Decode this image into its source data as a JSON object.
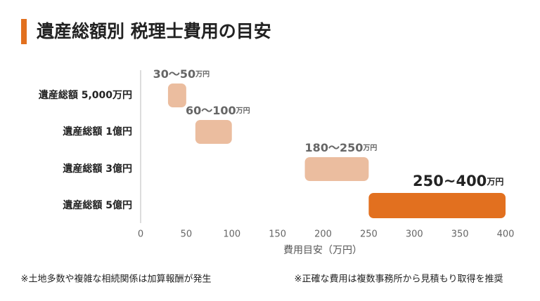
{
  "chart_data": {
    "type": "range-bar",
    "title": "遺産総額別 税理士費用の目安",
    "categories": [
      "遺産総額 5,000万円",
      "遺産総額 1億円",
      "遺産総額 3億円",
      "遺産総額 5億円"
    ],
    "low": [
      30,
      60,
      180,
      250
    ],
    "high": [
      50,
      100,
      250,
      400
    ],
    "value_labels": [
      "30〜50",
      "60〜100",
      "180〜250",
      "250~400"
    ],
    "value_label_unit": "万円",
    "colors": [
      "#ebbd9f",
      "#ebbd9f",
      "#ebbd9f",
      "#e2701f"
    ],
    "xlim": [
      0,
      400
    ],
    "xticks": [
      0,
      50,
      100,
      150,
      200,
      250,
      300,
      350,
      400
    ],
    "x_label": "費用目安（万円）",
    "notes": [
      "※土地多数や複雑な相続関係は加算報酬が発生",
      "※正確な費用は複数事務所から見積もり取得を推奨"
    ]
  }
}
